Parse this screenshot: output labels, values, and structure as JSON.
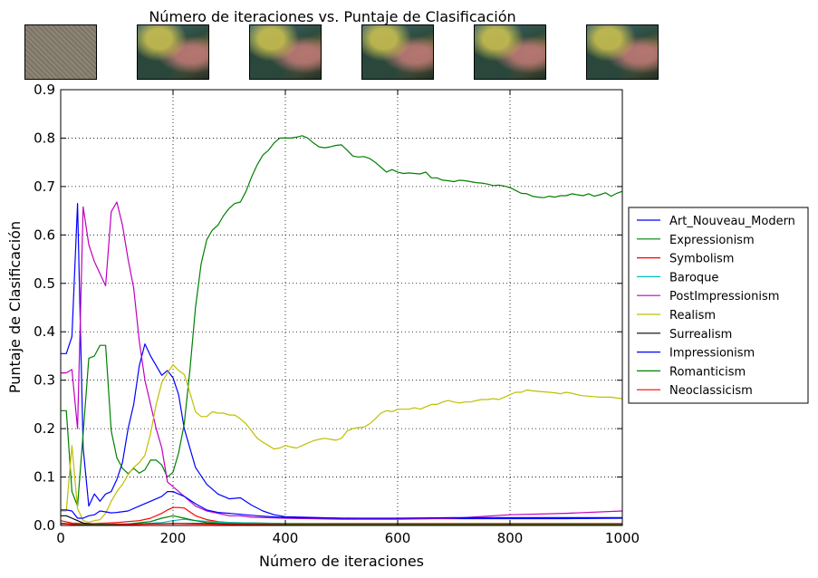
{
  "thumbnails": [
    {
      "name": "noise"
    },
    {
      "name": "stylized"
    },
    {
      "name": "stylized"
    },
    {
      "name": "stylized"
    },
    {
      "name": "stylized"
    },
    {
      "name": "stylized"
    }
  ],
  "chart_data": {
    "type": "line",
    "title": "Número de iteraciones vs. Puntaje de Clasificación",
    "xlabel": "Número de iteraciones",
    "ylabel": "Puntaje de Clasificación",
    "xlim": [
      0,
      1000
    ],
    "ylim": [
      0,
      0.9
    ],
    "xticks": [
      "0",
      "200",
      "400",
      "600",
      "800",
      "1000"
    ],
    "yticks": [
      "0.0",
      "0.1",
      "0.2",
      "0.3",
      "0.4",
      "0.5",
      "0.6",
      "0.7",
      "0.8",
      "0.9"
    ],
    "grid": true,
    "legend_position": "right",
    "series": [
      {
        "name": "Art_Nouveau_Modern",
        "color": "#0000ff",
        "x": [
          0,
          10,
          20,
          30,
          40,
          50,
          60,
          70,
          80,
          90,
          100,
          110,
          120,
          130,
          140,
          150,
          160,
          170,
          180,
          190,
          200,
          210,
          220,
          240,
          260,
          280,
          300,
          320,
          340,
          360,
          380,
          400,
          500,
          600,
          700,
          800,
          900,
          1000
        ],
        "y": [
          0.355,
          0.355,
          0.39,
          0.665,
          0.16,
          0.04,
          0.065,
          0.05,
          0.065,
          0.07,
          0.095,
          0.13,
          0.2,
          0.25,
          0.33,
          0.375,
          0.35,
          0.33,
          0.31,
          0.32,
          0.305,
          0.27,
          0.2,
          0.12,
          0.085,
          0.065,
          0.055,
          0.057,
          0.042,
          0.03,
          0.022,
          0.018,
          0.015,
          0.014,
          0.014,
          0.014,
          0.014,
          0.015
        ]
      },
      {
        "name": "Expressionism",
        "color": "#008000",
        "x": [
          0,
          10,
          20,
          30,
          40,
          50,
          60,
          70,
          80,
          90,
          100,
          110,
          120,
          130,
          140,
          150,
          160,
          170,
          180,
          190,
          200,
          210,
          220,
          230,
          240,
          250,
          260,
          270,
          280,
          290,
          300,
          310,
          320,
          330,
          340,
          350,
          360,
          370,
          380,
          390,
          400,
          410,
          420,
          430,
          440,
          450,
          460,
          470,
          480,
          490,
          500,
          510,
          520,
          530,
          540,
          550,
          560,
          570,
          580,
          590,
          600,
          610,
          620,
          630,
          640,
          650,
          660,
          670,
          680,
          690,
          700,
          710,
          720,
          730,
          740,
          750,
          760,
          770,
          780,
          790,
          800,
          810,
          820,
          830,
          840,
          850,
          860,
          870,
          880,
          890,
          900,
          910,
          920,
          930,
          940,
          950,
          960,
          970,
          980,
          990,
          1000
        ],
        "y": [
          0.237,
          0.237,
          0.07,
          0.04,
          0.19,
          0.345,
          0.35,
          0.372,
          0.372,
          0.195,
          0.14,
          0.118,
          0.107,
          0.118,
          0.108,
          0.115,
          0.135,
          0.135,
          0.125,
          0.1,
          0.11,
          0.15,
          0.21,
          0.32,
          0.45,
          0.54,
          0.59,
          0.61,
          0.62,
          0.64,
          0.655,
          0.665,
          0.668,
          0.69,
          0.72,
          0.745,
          0.765,
          0.775,
          0.79,
          0.8,
          0.8,
          0.8,
          0.802,
          0.805,
          0.8,
          0.79,
          0.782,
          0.78,
          0.782,
          0.785,
          0.786,
          0.775,
          0.763,
          0.761,
          0.762,
          0.758,
          0.75,
          0.74,
          0.73,
          0.735,
          0.73,
          0.727,
          0.728,
          0.727,
          0.726,
          0.73,
          0.718,
          0.718,
          0.713,
          0.712,
          0.71,
          0.713,
          0.712,
          0.71,
          0.708,
          0.707,
          0.705,
          0.702,
          0.703,
          0.701,
          0.698,
          0.692,
          0.686,
          0.685,
          0.68,
          0.678,
          0.677,
          0.68,
          0.678,
          0.681,
          0.681,
          0.685,
          0.683,
          0.681,
          0.685,
          0.68,
          0.683,
          0.687,
          0.68,
          0.686,
          0.69
        ]
      },
      {
        "name": "Symbolism",
        "color": "#ff0000",
        "x": [
          0,
          20,
          40,
          60,
          80,
          100,
          120,
          140,
          160,
          180,
          190,
          200,
          210,
          220,
          230,
          240,
          260,
          280,
          300,
          350,
          400,
          500,
          600,
          700,
          800,
          900,
          1000
        ],
        "y": [
          0.01,
          0.005,
          0.004,
          0.004,
          0.005,
          0.006,
          0.008,
          0.01,
          0.015,
          0.025,
          0.032,
          0.037,
          0.037,
          0.036,
          0.028,
          0.02,
          0.012,
          0.008,
          0.006,
          0.005,
          0.004,
          0.004,
          0.004,
          0.004,
          0.004,
          0.004,
          0.004
        ]
      },
      {
        "name": "Baroque",
        "color": "#00bfbf",
        "x": [
          0,
          50,
          100,
          150,
          180,
          200,
          220,
          240,
          300,
          400,
          500,
          600,
          700,
          800,
          900,
          1000
        ],
        "y": [
          0.003,
          0.003,
          0.003,
          0.004,
          0.006,
          0.01,
          0.013,
          0.01,
          0.006,
          0.004,
          0.003,
          0.003,
          0.003,
          0.003,
          0.003,
          0.003
        ]
      },
      {
        "name": "PostImpressionism",
        "color": "#bf00bf",
        "x": [
          0,
          10,
          20,
          30,
          40,
          50,
          60,
          70,
          80,
          90,
          100,
          110,
          120,
          130,
          140,
          150,
          160,
          170,
          180,
          190,
          200,
          210,
          220,
          240,
          260,
          280,
          300,
          320,
          340,
          400,
          500,
          600,
          700,
          800,
          900,
          1000
        ],
        "y": [
          0.315,
          0.315,
          0.322,
          0.2,
          0.658,
          0.58,
          0.545,
          0.52,
          0.495,
          0.648,
          0.668,
          0.62,
          0.55,
          0.49,
          0.38,
          0.3,
          0.25,
          0.2,
          0.16,
          0.09,
          0.08,
          0.07,
          0.06,
          0.04,
          0.03,
          0.025,
          0.02,
          0.02,
          0.017,
          0.015,
          0.013,
          0.013,
          0.015,
          0.022,
          0.025,
          0.03
        ]
      },
      {
        "name": "Realism",
        "color": "#bfbf00",
        "x": [
          0,
          10,
          20,
          30,
          40,
          50,
          60,
          70,
          80,
          90,
          100,
          110,
          120,
          130,
          140,
          150,
          160,
          170,
          180,
          190,
          200,
          210,
          220,
          230,
          240,
          250,
          260,
          270,
          280,
          290,
          300,
          310,
          320,
          330,
          340,
          350,
          360,
          370,
          380,
          390,
          400,
          410,
          420,
          430,
          440,
          450,
          460,
          470,
          480,
          490,
          500,
          510,
          520,
          530,
          540,
          550,
          560,
          570,
          580,
          590,
          600,
          610,
          620,
          630,
          640,
          650,
          660,
          670,
          680,
          690,
          700,
          710,
          720,
          730,
          740,
          750,
          760,
          770,
          780,
          790,
          800,
          810,
          820,
          830,
          840,
          850,
          860,
          870,
          880,
          890,
          900,
          910,
          920,
          930,
          940,
          950,
          960,
          970,
          980,
          990,
          1000
        ],
        "y": [
          0.03,
          0.03,
          0.165,
          0.035,
          0.01,
          0.007,
          0.01,
          0.012,
          0.025,
          0.05,
          0.07,
          0.085,
          0.105,
          0.12,
          0.13,
          0.145,
          0.19,
          0.25,
          0.295,
          0.315,
          0.332,
          0.32,
          0.312,
          0.275,
          0.235,
          0.225,
          0.225,
          0.235,
          0.232,
          0.232,
          0.228,
          0.228,
          0.22,
          0.21,
          0.195,
          0.18,
          0.172,
          0.165,
          0.158,
          0.16,
          0.165,
          0.162,
          0.16,
          0.165,
          0.17,
          0.175,
          0.178,
          0.18,
          0.178,
          0.176,
          0.18,
          0.195,
          0.2,
          0.202,
          0.203,
          0.21,
          0.22,
          0.232,
          0.237,
          0.235,
          0.24,
          0.24,
          0.24,
          0.243,
          0.24,
          0.245,
          0.25,
          0.25,
          0.255,
          0.258,
          0.255,
          0.253,
          0.255,
          0.255,
          0.258,
          0.26,
          0.26,
          0.262,
          0.26,
          0.265,
          0.27,
          0.275,
          0.275,
          0.28,
          0.278,
          0.277,
          0.276,
          0.275,
          0.274,
          0.272,
          0.275,
          0.273,
          0.27,
          0.268,
          0.267,
          0.266,
          0.265,
          0.265,
          0.265,
          0.263,
          0.262
        ]
      },
      {
        "name": "Surrealism",
        "color": "#000000",
        "x": [
          0,
          10,
          20,
          30,
          40,
          60,
          100,
          150,
          200,
          250,
          300,
          400,
          500,
          600,
          700,
          800,
          900,
          1000
        ],
        "y": [
          0.02,
          0.02,
          0.015,
          0.01,
          0.005,
          0.002,
          0.002,
          0.003,
          0.004,
          0.004,
          0.003,
          0.002,
          0.002,
          0.002,
          0.002,
          0.002,
          0.002,
          0.002
        ]
      },
      {
        "name": "Impressionism",
        "color": "#0000ff",
        "x": [
          0,
          10,
          20,
          30,
          40,
          50,
          60,
          70,
          80,
          90,
          100,
          120,
          140,
          160,
          180,
          190,
          200,
          210,
          220,
          240,
          260,
          280,
          300,
          350,
          400,
          500,
          600,
          700,
          800,
          900,
          1000
        ],
        "y": [
          0.032,
          0.032,
          0.03,
          0.015,
          0.015,
          0.02,
          0.022,
          0.03,
          0.028,
          0.026,
          0.027,
          0.03,
          0.04,
          0.05,
          0.06,
          0.07,
          0.07,
          0.065,
          0.06,
          0.045,
          0.032,
          0.027,
          0.025,
          0.02,
          0.016,
          0.015,
          0.015,
          0.016,
          0.016,
          0.016,
          0.016
        ]
      },
      {
        "name": "Romanticism",
        "color": "#008000",
        "x": [
          0,
          20,
          40,
          80,
          120,
          160,
          180,
          200,
          220,
          240,
          260,
          300,
          400,
          500,
          600,
          700,
          800,
          900,
          1000
        ],
        "y": [
          0.005,
          0.003,
          0.002,
          0.002,
          0.003,
          0.008,
          0.015,
          0.02,
          0.015,
          0.01,
          0.006,
          0.004,
          0.003,
          0.003,
          0.003,
          0.003,
          0.003,
          0.003,
          0.003
        ]
      },
      {
        "name": "Neoclassicism",
        "color": "#ff0000",
        "x": [
          0,
          20,
          40,
          80,
          120,
          160,
          200,
          240,
          300,
          400,
          500,
          600,
          700,
          800,
          900,
          1000
        ],
        "y": [
          0.004,
          0.002,
          0.001,
          0.001,
          0.002,
          0.003,
          0.004,
          0.003,
          0.002,
          0.001,
          0.001,
          0.001,
          0.001,
          0.001,
          0.001,
          0.001
        ]
      }
    ]
  }
}
